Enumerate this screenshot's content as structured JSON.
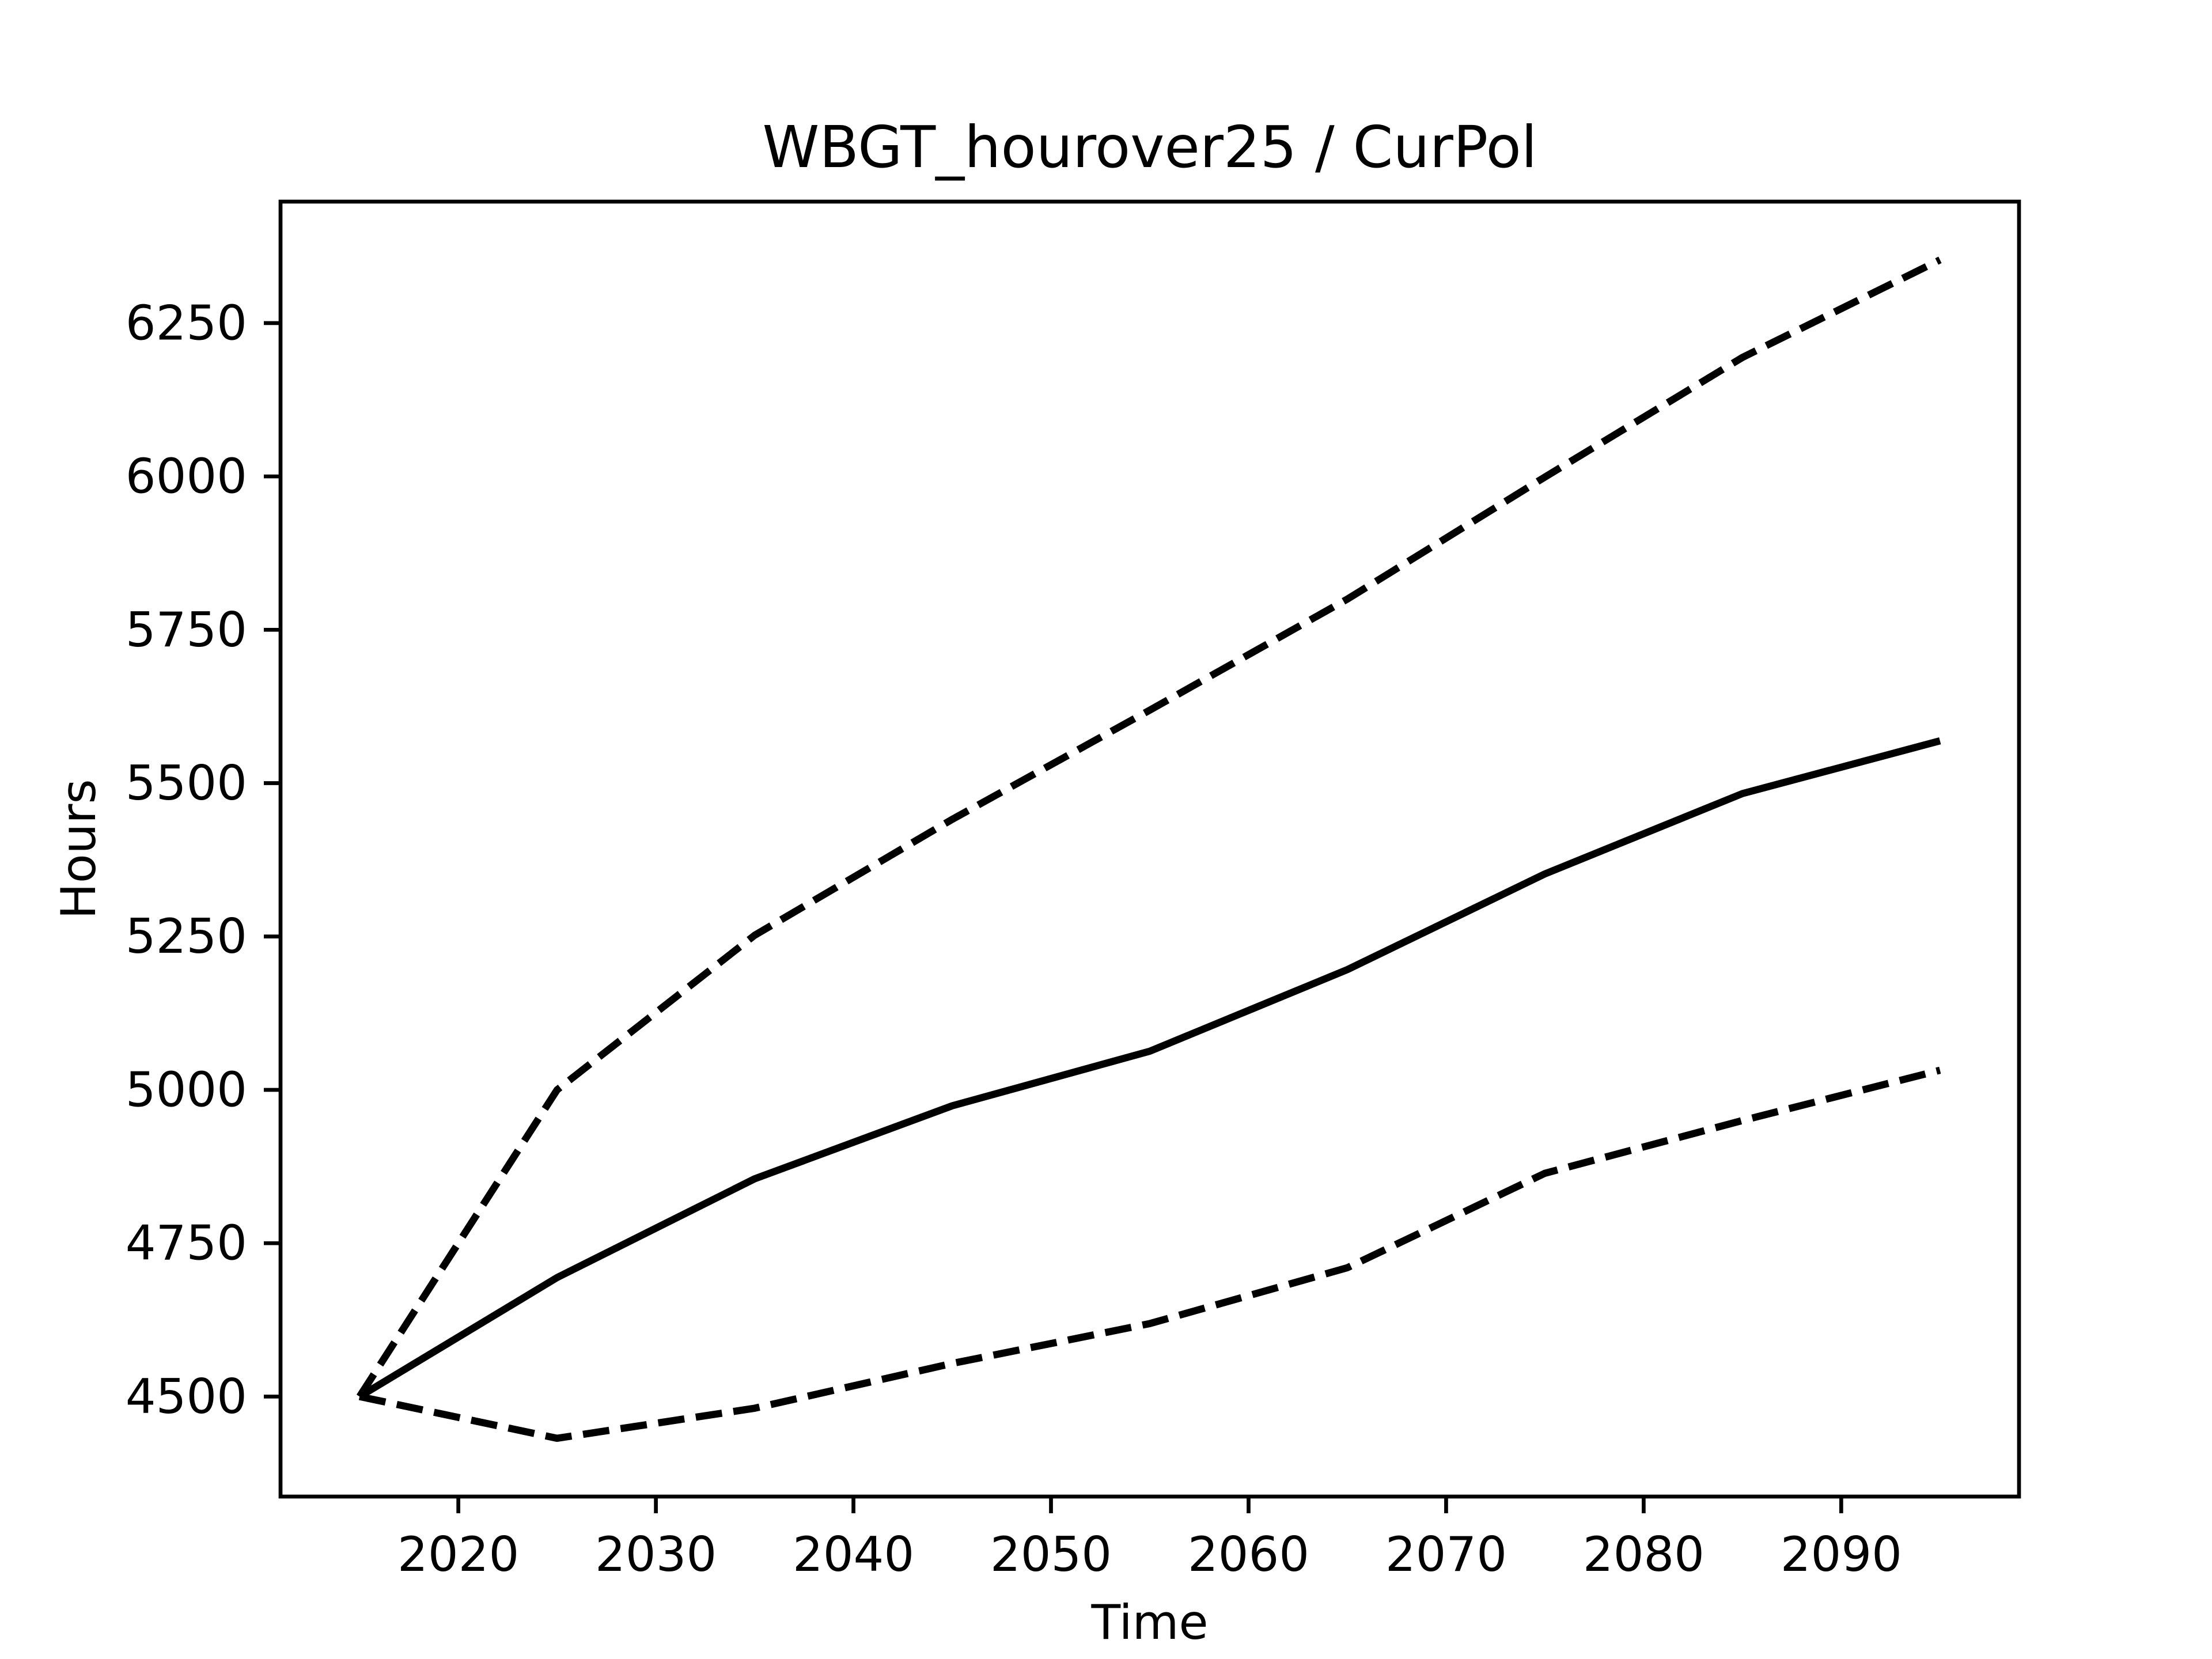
{
  "chart_data": {
    "type": "line",
    "title": "WBGT_hourover25 / CurPol",
    "xlabel": "Time",
    "ylabel": "Hours",
    "x": [
      2015,
      2025,
      2035,
      2045,
      2055,
      2065,
      2075,
      2085,
      2095
    ],
    "series": [
      {
        "color": "#000000",
        "dashed": false,
        "values": [
          4500,
          4694,
          4855,
          4974,
          5063,
          5196,
          5352,
          5483,
          5569
        ]
      },
      {
        "color": "#000000",
        "dashed": true,
        "values": [
          4500,
          5000,
          5252,
          5441,
          5619,
          5800,
          5999,
          6194,
          6353
        ]
      },
      {
        "color": "#000000",
        "dashed": true,
        "values": [
          4500,
          4432,
          4481,
          4554,
          4619,
          4710,
          4864,
          4950,
          5032
        ]
      }
    ],
    "xlim": [
      2011,
      2099
    ],
    "xticks": [
      2020,
      2030,
      2040,
      2050,
      2060,
      2070,
      2080,
      2090
    ],
    "ylim": [
      4337,
      6448
    ],
    "yticks": [
      4500,
      4750,
      5000,
      5250,
      5500,
      5750,
      6000,
      6250
    ],
    "grid": false
  }
}
